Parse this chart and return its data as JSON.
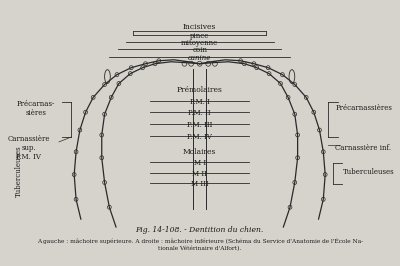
{
  "bg_color": "#d6d3cc",
  "fig_width": 4.0,
  "fig_height": 2.66,
  "dpi": 100,
  "caption_fig": "Fig. 14-108. - Dentition du chien.",
  "caption_sub": "A gauche : mâchoire supérieure. A droite : mâchoire inférieure (Schéma du Service d'Anatomie de l'École Na-",
  "caption_sub2": "tionale Vétérinaire d'Alfort).",
  "line_color": "#2a2a2a",
  "text_color": "#1a1a1a"
}
